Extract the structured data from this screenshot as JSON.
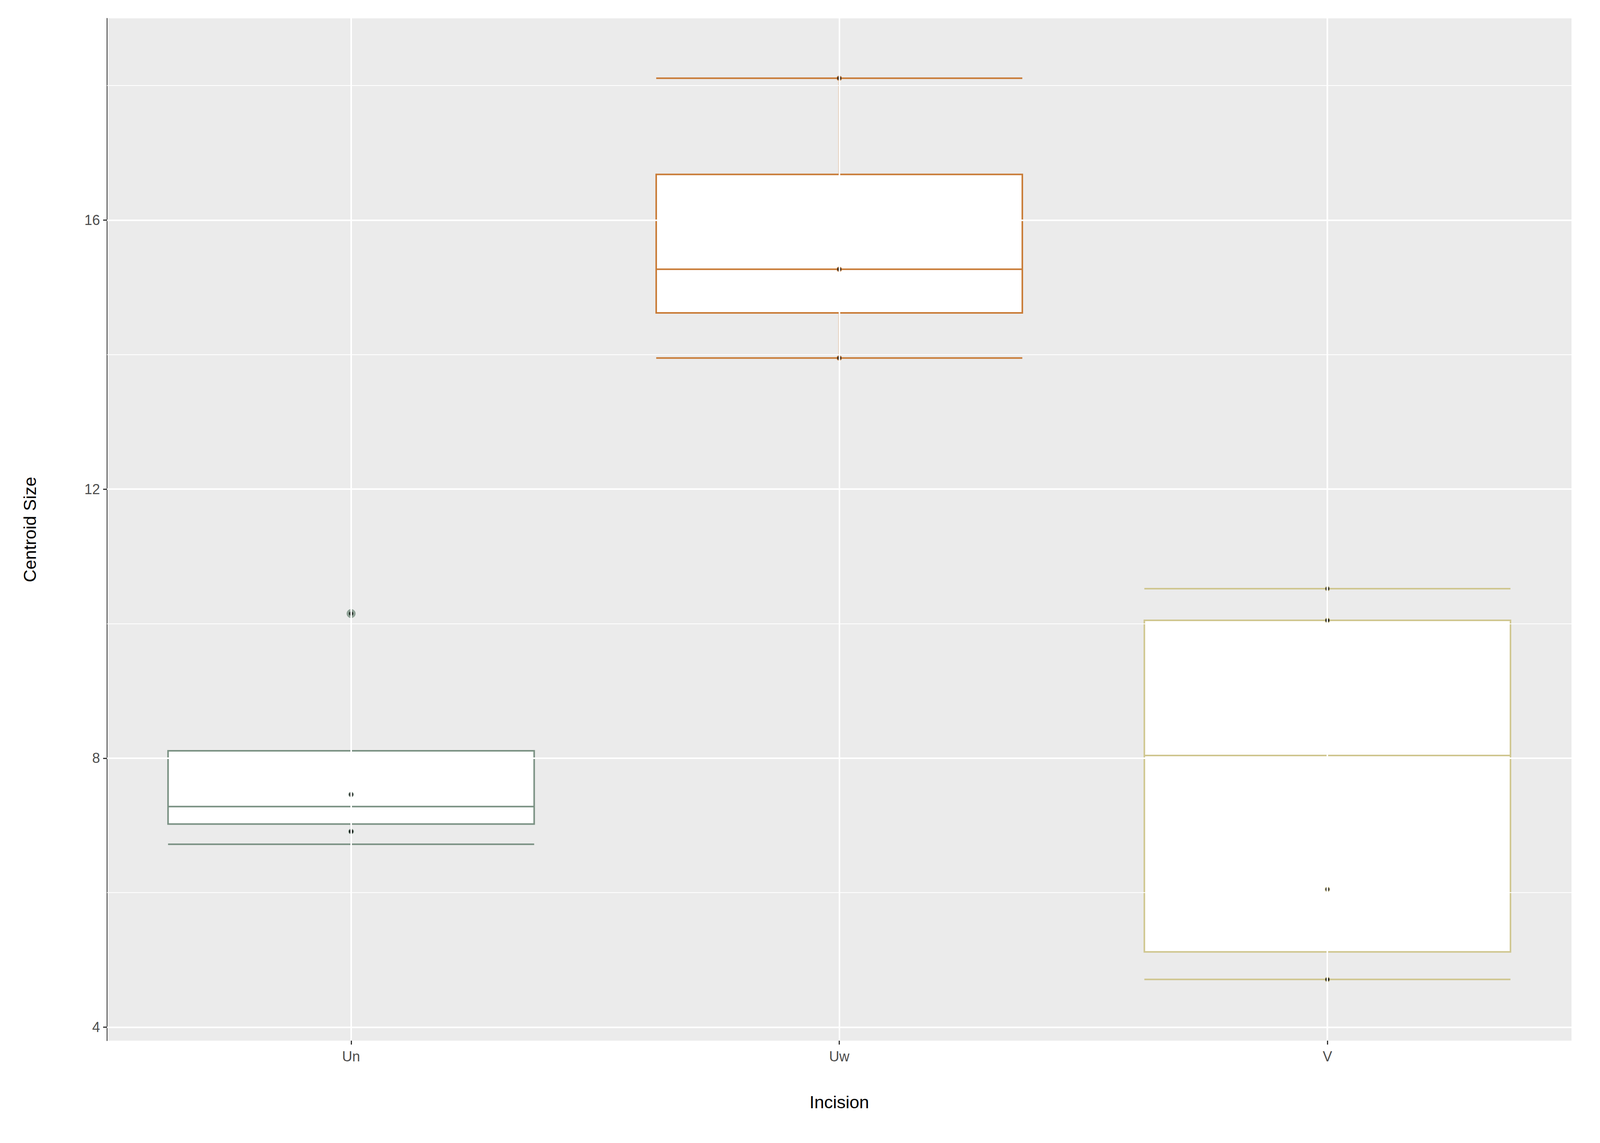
{
  "chart_data": {
    "type": "boxplot",
    "x_label": "Incision",
    "y_label": "Centroid Size",
    "categories": [
      "Un",
      "Uw",
      "V"
    ],
    "colors": [
      "#7a9183",
      "#c87a35",
      "#cfc68f"
    ],
    "boxes": [
      {
        "low": 6.72,
        "q1": 7.02,
        "median": 7.28,
        "q3": 8.11,
        "high": 8.11
      },
      {
        "low": 13.95,
        "q1": 14.62,
        "median": 15.27,
        "q3": 16.68,
        "high": 18.11
      },
      {
        "low": 4.71,
        "q1": 5.12,
        "median": 8.04,
        "q3": 10.05,
        "high": 10.52
      }
    ],
    "outliers": [
      [
        10.15
      ],
      [],
      []
    ],
    "points": [
      [
        10.15,
        7.46,
        6.91,
        6.91
      ],
      [
        18.11,
        15.27,
        13.95
      ],
      [
        10.52,
        10.05,
        10.05,
        6.05,
        4.71,
        4.71
      ]
    ],
    "ylim": [
      3.8,
      19.0
    ],
    "yticks": [
      4,
      8,
      12,
      16
    ],
    "grid": true
  }
}
